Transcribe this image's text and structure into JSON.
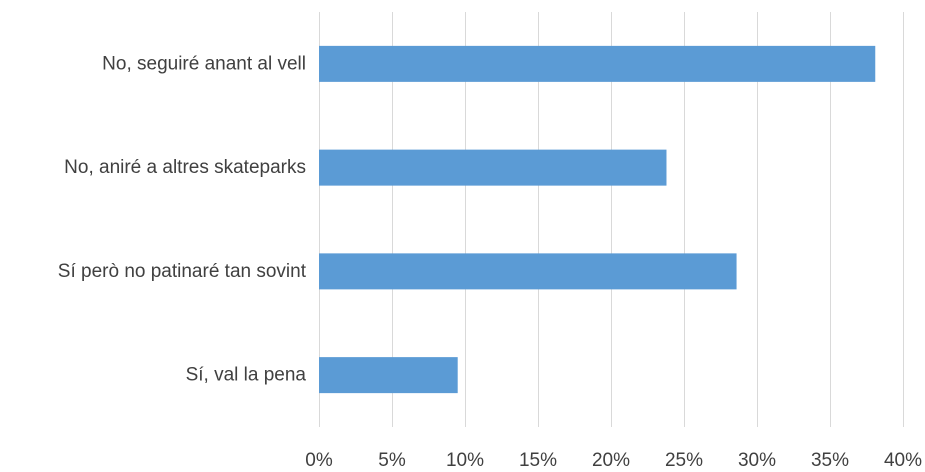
{
  "chart_data": {
    "type": "bar",
    "orientation": "horizontal",
    "categories": [
      "No, seguiré anant al vell",
      "No, aniré a altres skateparks",
      "Sí però no patinaré tan sovint",
      "Sí, val la pena"
    ],
    "values": [
      38.1,
      23.8,
      28.6,
      9.5
    ],
    "value_unit": "%",
    "xlim": [
      0,
      40
    ],
    "xticks": [
      0,
      5,
      10,
      15,
      20,
      25,
      30,
      35,
      40
    ],
    "xtick_labels": [
      "0%",
      "5%",
      "10%",
      "15%",
      "20%",
      "25%",
      "30%",
      "35%",
      "40%"
    ],
    "grid": "vertical",
    "bar_color": "#5b9bd5",
    "title": "",
    "xlabel": "",
    "ylabel": ""
  }
}
